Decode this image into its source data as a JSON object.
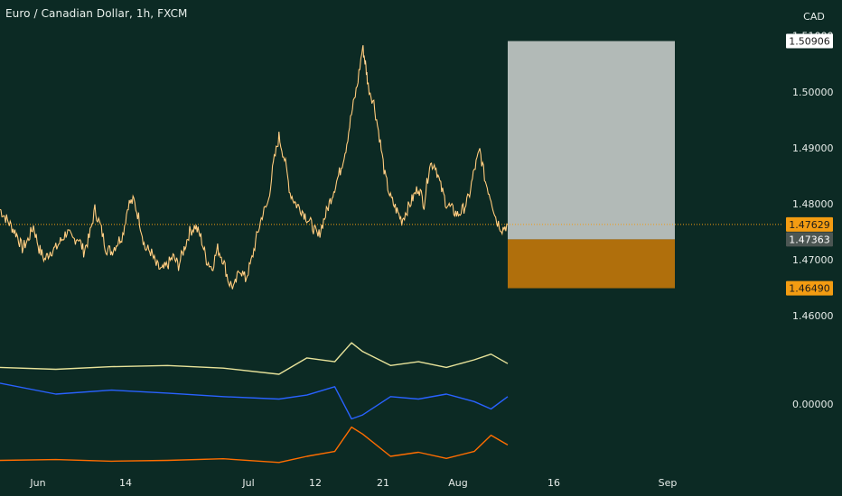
{
  "header": {
    "title": "Euro / Canadian Dollar, 1h, FXCM",
    "currency": "CAD"
  },
  "chart_data": {
    "type": "line",
    "symbol": "EURCAD",
    "y_axis_ticks": [
      "1.51000",
      "1.50000",
      "1.49000",
      "1.48000",
      "1.47000",
      "1.46000"
    ],
    "y_axis_tick_values": [
      1.51,
      1.5,
      1.49,
      1.48,
      1.47,
      1.46
    ],
    "indicator_axis_tick": "0.00000",
    "x_axis_ticks": [
      "Jun",
      "14",
      "Jul",
      "12",
      "21",
      "Aug",
      "16",
      "Sep"
    ],
    "price_series": {
      "name": "",
      "color": "#ffb74d",
      "points": [
        [
          0,
          1.479
        ],
        [
          2,
          1.4775
        ],
        [
          4,
          1.476
        ],
        [
          6,
          1.4745
        ],
        [
          8,
          1.472
        ],
        [
          10,
          1.4735
        ],
        [
          12,
          1.476
        ],
        [
          14,
          1.472
        ],
        [
          16,
          1.47
        ],
        [
          18,
          1.4715
        ],
        [
          20,
          1.472
        ],
        [
          22,
          1.4735
        ],
        [
          24,
          1.475
        ],
        [
          26,
          1.4735
        ],
        [
          28,
          1.474
        ],
        [
          30,
          1.4715
        ],
        [
          32,
          1.474
        ],
        [
          34,
          1.479
        ],
        [
          36,
          1.476
        ],
        [
          38,
          1.472
        ],
        [
          40,
          1.4715
        ],
        [
          42,
          1.473
        ],
        [
          44,
          1.4745
        ],
        [
          46,
          1.48
        ],
        [
          48,
          1.4805
        ],
        [
          50,
          1.477
        ],
        [
          52,
          1.472
        ],
        [
          54,
          1.4715
        ],
        [
          56,
          1.469
        ],
        [
          58,
          1.468
        ],
        [
          60,
          1.469
        ],
        [
          62,
          1.4705
        ],
        [
          64,
          1.469
        ],
        [
          66,
          1.472
        ],
        [
          68,
          1.475
        ],
        [
          70,
          1.476
        ],
        [
          72,
          1.474
        ],
        [
          74,
          1.47
        ],
        [
          76,
          1.4685
        ],
        [
          78,
          1.472
        ],
        [
          80,
          1.47
        ],
        [
          82,
          1.466
        ],
        [
          84,
          1.465
        ],
        [
          86,
          1.4685
        ],
        [
          88,
          1.4665
        ],
        [
          90,
          1.4695
        ],
        [
          92,
          1.474
        ],
        [
          94,
          1.478
        ],
        [
          96,
          1.48
        ],
        [
          98,
          1.487
        ],
        [
          100,
          1.492
        ],
        [
          102,
          1.488
        ],
        [
          104,
          1.482
        ],
        [
          106,
          1.48
        ],
        [
          108,
          1.479
        ],
        [
          110,
          1.4775
        ],
        [
          112,
          1.476
        ],
        [
          114,
          1.474
        ],
        [
          116,
          1.477
        ],
        [
          118,
          1.48
        ],
        [
          120,
          1.483
        ],
        [
          122,
          1.486
        ],
        [
          124,
          1.49
        ],
        [
          126,
          1.496
        ],
        [
          128,
          1.501
        ],
        [
          130,
          1.508
        ],
        [
          131,
          1.505
        ],
        [
          132,
          1.501
        ],
        [
          134,
          1.498
        ],
        [
          136,
          1.492
        ],
        [
          138,
          1.485
        ],
        [
          140,
          1.481
        ],
        [
          142,
          1.479
        ],
        [
          144,
          1.477
        ],
        [
          146,
          1.479
        ],
        [
          148,
          1.481
        ],
        [
          150,
          1.483
        ],
        [
          152,
          1.48
        ],
        [
          154,
          1.487
        ],
        [
          156,
          1.487
        ],
        [
          158,
          1.483
        ],
        [
          160,
          1.48
        ],
        [
          162,
          1.479
        ],
        [
          164,
          1.478
        ],
        [
          166,
          1.479
        ],
        [
          168,
          1.481
        ],
        [
          170,
          1.486
        ],
        [
          172,
          1.4895
        ],
        [
          174,
          1.484
        ],
        [
          176,
          1.481
        ],
        [
          178,
          1.477
        ],
        [
          180,
          1.4755
        ],
        [
          182,
          1.4763
        ]
      ]
    },
    "position_box": {
      "type": "long-position",
      "entry": 1.47363,
      "target": 1.50906,
      "stop": 1.4649,
      "profit_color": "#b2bab7",
      "loss_color": "#b06f0c"
    },
    "current_price_line": 1.47629,
    "price_tags": [
      {
        "label": "1.50906",
        "value": 1.50906,
        "background": "#ffffff",
        "text_color": "#1c1c1c"
      },
      {
        "label": "1.47629",
        "value": 1.47629,
        "background": "#f39c12",
        "text_color": "#1c1c1c"
      },
      {
        "label": "1.47363",
        "value": 1.47363,
        "background": "#4c5653",
        "text_color": "#ffffff"
      },
      {
        "label": "1.46490",
        "value": 1.4649,
        "background": "#f39c12",
        "text_color": "#1c1c1c"
      }
    ],
    "indicators": [
      {
        "name": "",
        "color": "#e8e39a",
        "points": [
          [
            0,
            0.3
          ],
          [
            20,
            0.25
          ],
          [
            40,
            0.32
          ],
          [
            60,
            0.35
          ],
          [
            80,
            0.28
          ],
          [
            100,
            0.12
          ],
          [
            110,
            0.55
          ],
          [
            120,
            0.45
          ],
          [
            126,
            0.95
          ],
          [
            130,
            0.72
          ],
          [
            140,
            0.35
          ],
          [
            150,
            0.45
          ],
          [
            160,
            0.3
          ],
          [
            170,
            0.5
          ],
          [
            176,
            0.65
          ],
          [
            182,
            0.4
          ]
        ]
      },
      {
        "name": "",
        "color": "#2962ff",
        "points": [
          [
            0,
            0.82
          ],
          [
            20,
            0.6
          ],
          [
            40,
            0.68
          ],
          [
            60,
            0.62
          ],
          [
            80,
            0.55
          ],
          [
            100,
            0.5
          ],
          [
            110,
            0.58
          ],
          [
            120,
            0.75
          ],
          [
            126,
            0.1
          ],
          [
            130,
            0.18
          ],
          [
            140,
            0.55
          ],
          [
            150,
            0.5
          ],
          [
            160,
            0.6
          ],
          [
            170,
            0.45
          ],
          [
            176,
            0.3
          ],
          [
            182,
            0.55
          ]
        ]
      },
      {
        "name": "",
        "color": "#ff6d00",
        "points": [
          [
            0,
            0.1
          ],
          [
            20,
            0.12
          ],
          [
            40,
            0.08
          ],
          [
            60,
            0.1
          ],
          [
            80,
            0.14
          ],
          [
            100,
            0.05
          ],
          [
            110,
            0.2
          ],
          [
            120,
            0.32
          ],
          [
            126,
            0.92
          ],
          [
            130,
            0.75
          ],
          [
            140,
            0.2
          ],
          [
            150,
            0.3
          ],
          [
            160,
            0.15
          ],
          [
            170,
            0.32
          ],
          [
            176,
            0.72
          ],
          [
            182,
            0.48
          ]
        ]
      }
    ],
    "grid": false,
    "legend": "none"
  }
}
